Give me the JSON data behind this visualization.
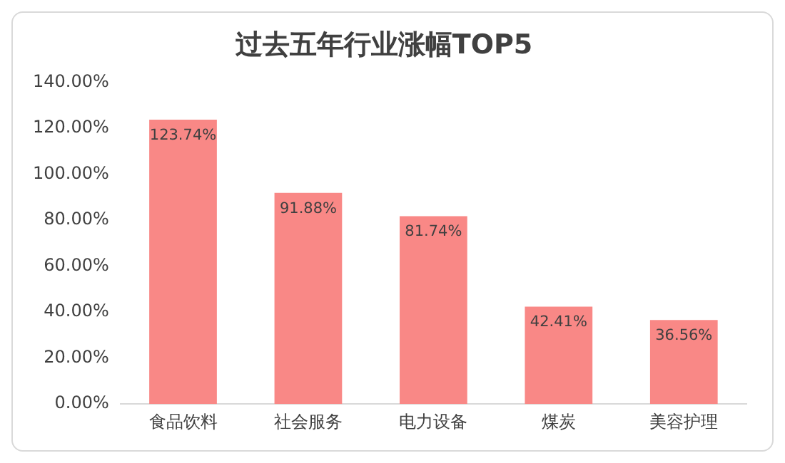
{
  "chart_data": {
    "type": "bar",
    "title": "过去五年行业涨幅TOP5",
    "categories": [
      "食品饮料",
      "社会服务",
      "电力设备",
      "煤炭",
      "美容护理"
    ],
    "values": [
      123.74,
      91.88,
      81.74,
      42.41,
      36.56
    ],
    "value_labels": [
      "123.74%",
      "91.88%",
      "81.74%",
      "42.41%",
      "36.56%"
    ],
    "color": "#f98886",
    "ylim": [
      0,
      140
    ],
    "yticks": [
      {
        "value": 0,
        "label": "0.00%"
      },
      {
        "value": 20,
        "label": "20.00%"
      },
      {
        "value": 40,
        "label": "40.00%"
      },
      {
        "value": 60,
        "label": "60.00%"
      },
      {
        "value": 80,
        "label": "80.00%"
      },
      {
        "value": 100,
        "label": "100.00%"
      },
      {
        "value": 120,
        "label": "120.00%"
      },
      {
        "value": 140,
        "label": "140.00%"
      }
    ],
    "grid": false,
    "legend": false
  }
}
